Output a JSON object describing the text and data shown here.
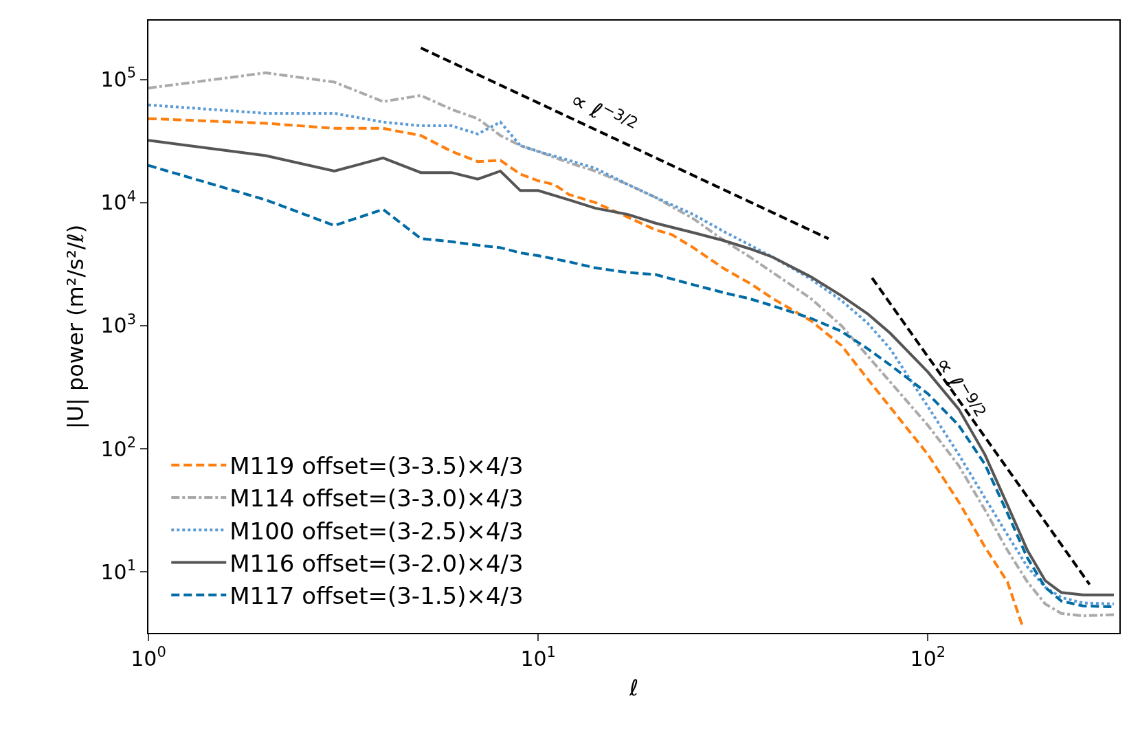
{
  "chart_data": {
    "type": "line",
    "xlabel": "ℓ",
    "ylabel": "|U| power (m²/s²/ℓ)",
    "log": "xy",
    "legend": "bottom left",
    "xlim": [
      1,
      310
    ],
    "xticks": [
      {
        "value": 1,
        "label": "10$^{0}$"
      },
      {
        "value": 10,
        "label": "10$^{1}$"
      },
      {
        "value": 100,
        "label": "10$^{2}$"
      }
    ],
    "ylim": [
      3.2,
      300000
    ],
    "yticks": [
      {
        "value": 10,
        "label": "10$^{1}$"
      },
      {
        "value": 100,
        "label": "10$^{2}$"
      },
      {
        "value": 1000,
        "label": "10$^{3}$"
      },
      {
        "value": 10000,
        "label": "10$^{4}$"
      },
      {
        "value": 100000,
        "label": "10$^{5}$"
      }
    ],
    "x": [
      1,
      2,
      3,
      4,
      5,
      6,
      7,
      8,
      9,
      10,
      12,
      14,
      17,
      20,
      25,
      30,
      35,
      40,
      50,
      60,
      70,
      80,
      100,
      120,
      140,
      160,
      180,
      200,
      220,
      250,
      300
    ],
    "annotations": [
      "∝ ℓ$^{−3/2}$",
      "∝ ℓ$^{−9/2}$"
    ],
    "series": [
      {
        "name": "M119 offset=(3-3.5)×4/3",
        "color": "#ff7f0e",
        "line_style": "dashed",
        "x": [
          1,
          2,
          3,
          4,
          5,
          6,
          7,
          8,
          9,
          10,
          11,
          12,
          14,
          17,
          20,
          22,
          25,
          30,
          35,
          40,
          50,
          60,
          70,
          80,
          100,
          120,
          140,
          160,
          175
        ],
        "values": [
          48000,
          44000,
          40000,
          40000,
          35000,
          26000,
          21500,
          22000,
          17000,
          15000,
          14000,
          11600,
          10000,
          7600,
          6000,
          5500,
          4300,
          2900,
          2200,
          1660,
          1100,
          690,
          370,
          218,
          90,
          37,
          16,
          8.3,
          3.6
        ]
      },
      {
        "name": "M114 offset=(3-3.0)×4/3",
        "color": "#aaaaaa",
        "line_style": "dashdot",
        "values": [
          85000,
          113000,
          95000,
          66000,
          74000,
          57000,
          48000,
          35000,
          29000,
          26000,
          21000,
          18000,
          14000,
          11000,
          7400,
          4900,
          3600,
          2700,
          1670,
          1000,
          570,
          350,
          155,
          73,
          32,
          15,
          8.3,
          5.5,
          4.6,
          4.4,
          4.5
        ]
      },
      {
        "name": "M100 offset=(3-2.5)×4/3",
        "color": "#5b9bd5",
        "line_style": "dotted",
        "values": [
          62000,
          53000,
          53000,
          45000,
          42000,
          42000,
          36000,
          45000,
          29000,
          26000,
          22000,
          19000,
          14000,
          11000,
          8000,
          5800,
          4500,
          3600,
          2400,
          1600,
          1050,
          650,
          220,
          90,
          40,
          20,
          11,
          7.5,
          6.2,
          5.6,
          5.5
        ]
      },
      {
        "name": "M116 offset=(3-2.0)×4/3",
        "color": "#555555",
        "line_style": "solid",
        "values": [
          32000,
          24000,
          18000,
          23000,
          17500,
          17500,
          15500,
          18000,
          12500,
          12500,
          10500,
          9000,
          8000,
          6800,
          5700,
          4900,
          4200,
          3600,
          2500,
          1750,
          1250,
          870,
          420,
          210,
          90,
          35,
          15,
          8.5,
          6.8,
          6.5,
          6.5
        ]
      },
      {
        "name": "M117 offset=(3-1.5)×4/3",
        "color": "#006ba4",
        "line_style": "dashed",
        "values": [
          20000,
          10500,
          6500,
          8800,
          5100,
          4800,
          4500,
          4300,
          3900,
          3700,
          3300,
          2950,
          2700,
          2600,
          2150,
          1850,
          1650,
          1450,
          1150,
          900,
          650,
          480,
          280,
          155,
          75,
          30,
          13,
          7.5,
          5.8,
          5.3,
          5.2
        ]
      },
      {
        "type": "line",
        "color": "#000000",
        "line_style": "dashed",
        "x": [
          5.0,
          55.6
        ],
        "values": [
          180000,
          5080
        ]
      },
      {
        "type": "line",
        "color": "#000000",
        "line_style": "dashed",
        "x": [
          71.9,
          260
        ],
        "values": [
          2440,
          7.9
        ]
      }
    ]
  }
}
